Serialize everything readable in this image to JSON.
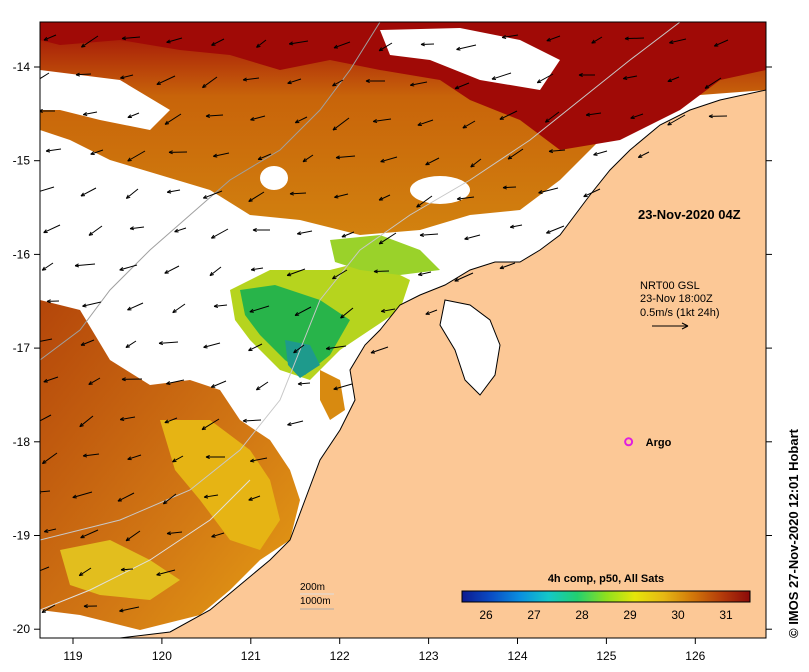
{
  "map": {
    "x_ticks": [
      "119",
      "120",
      "121",
      "122",
      "123",
      "124",
      "125",
      "126"
    ],
    "y_ticks": [
      "-14",
      "-15",
      "-16",
      "-17",
      "-18",
      "-19",
      "-20"
    ],
    "timestamp_label": "23-Nov-2020 04Z",
    "current_legend": {
      "line1": "NRT00 GSL",
      "line2": "23-Nov 18:00Z",
      "line3": "0.5m/s (1kt 24h)"
    },
    "argo": {
      "label": "Argo",
      "lon": 125.25,
      "lat": -18.0
    },
    "depth_labels": [
      "200m",
      "1000m"
    ],
    "colorbar": {
      "title": "4h comp, p50, All Sats",
      "ticks": [
        "26",
        "27",
        "28",
        "29",
        "30",
        "31"
      ],
      "range": [
        25.5,
        31.5
      ],
      "colors": [
        "#0d1a8f",
        "#0a4cc4",
        "#0a8ee0",
        "#14c8c8",
        "#22d070",
        "#8ee01e",
        "#e6e60a",
        "#e6b814",
        "#d2780a",
        "#b43c0a",
        "#8c0a0a"
      ]
    },
    "credit": "© IMOS 27-Nov-2020 12:01 Hobart",
    "colors": {
      "land": "#fcc896",
      "sea_cold": "#18b45a",
      "sea_warm": "#b4500a",
      "sea_hot": "#a00a0a"
    }
  }
}
